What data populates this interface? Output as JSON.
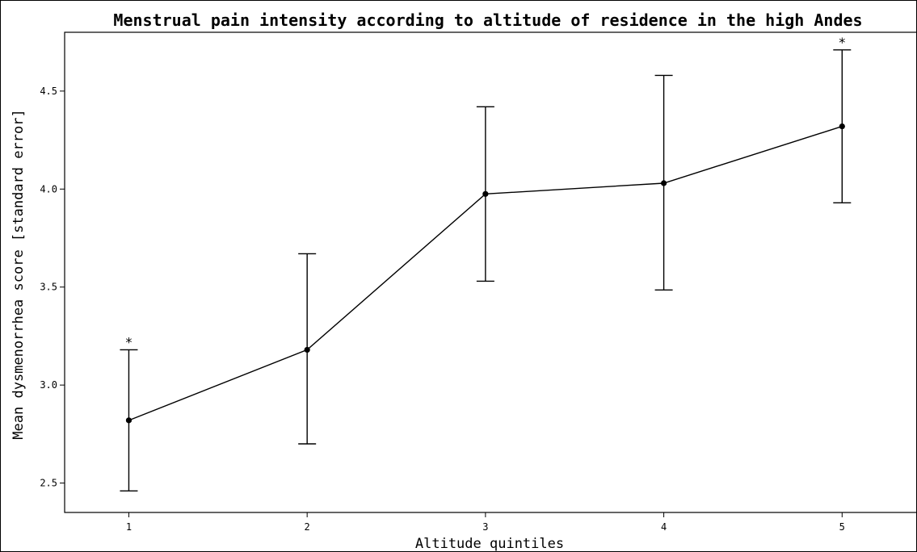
{
  "chart_data": {
    "type": "line",
    "title": "Menstrual pain intensity according to altitude of residence in the high Andes",
    "xlabel": "Altitude quintiles",
    "ylabel": "Mean dysmenorrhea score [standard error]",
    "x": [
      1,
      2,
      3,
      4,
      5
    ],
    "x_tick_labels": [
      "1",
      "2",
      "3",
      "4",
      "5"
    ],
    "xlim": [
      0.64,
      5.42
    ],
    "ylim": [
      2.35,
      4.8
    ],
    "y_ticks": [
      2.5,
      3.0,
      3.5,
      4.0,
      4.5
    ],
    "y_tick_labels": [
      "2.5",
      "3.0",
      "3.5",
      "4.0",
      "4.5"
    ],
    "series": [
      {
        "values": [
          2.82,
          3.18,
          3.975,
          4.03,
          4.32
        ],
        "error_low": [
          2.46,
          2.7,
          3.53,
          3.485,
          3.93
        ],
        "error_high": [
          3.18,
          3.67,
          4.42,
          4.58,
          4.71
        ],
        "annotations": [
          "*",
          "",
          "",
          "",
          "*"
        ]
      }
    ],
    "grid": false,
    "legend": "none"
  }
}
